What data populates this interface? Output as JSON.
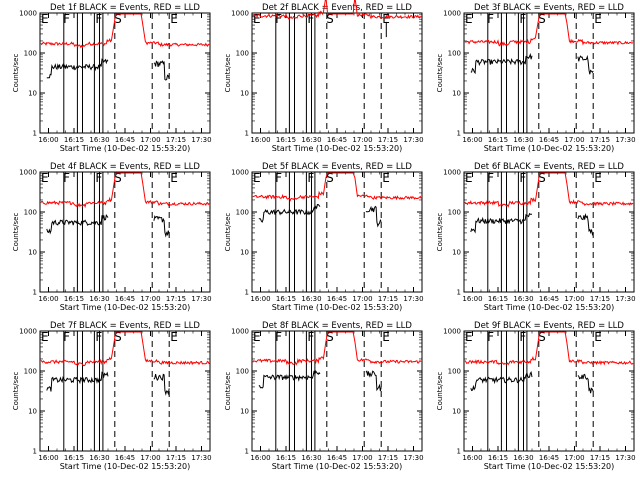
{
  "chart_data": [
    {
      "type": "line",
      "panel": 1,
      "title": "Det 1f BLACK = Events, RED = LLD",
      "xlabel": "Start Time (10-Dec-02 15:53:20)",
      "ylabel": "Counts/sec",
      "yscale": "log",
      "ylim": [
        1,
        1000
      ],
      "xlim": [
        "15:55",
        "17:35"
      ],
      "xticks": [
        "16:00",
        "16:15",
        "16:30",
        "16:45",
        "17:00",
        "17:15",
        "17:30"
      ],
      "yticks": [
        "1",
        "10",
        "100",
        "1000"
      ],
      "segment_labels": [
        {
          "label": "E",
          "time": "15:55"
        },
        {
          "label": "F",
          "time": "16:08"
        },
        {
          "label": "F",
          "time": "16:27"
        },
        {
          "label": "S",
          "time": "16:38"
        },
        {
          "label": "E",
          "time": "17:11"
        }
      ],
      "solid_markers": [
        "16:09",
        "16:17",
        "16:20",
        "16:27",
        "16:30",
        "16:32"
      ],
      "dashed_markers": [
        "16:39",
        "17:01",
        "17:11"
      ],
      "series": [
        {
          "name": "LLD",
          "color": "#ff0000",
          "level": 170
        },
        {
          "name": "Events",
          "color": "#000000",
          "level": 45
        }
      ],
      "gap": [
        "16:37",
        "16:57"
      ]
    },
    {
      "type": "line",
      "panel": 2,
      "title": "Det 2f BLACK = Events, RED = LLD",
      "xlabel": "Start Time (10-Dec-02 15:53:20)",
      "ylabel": "Counts/sec",
      "yscale": "log",
      "ylim": [
        1,
        1000
      ],
      "xlim": [
        "15:55",
        "17:35"
      ],
      "xticks": [
        "16:00",
        "16:15",
        "16:30",
        "16:45",
        "17:00",
        "17:15",
        "17:30"
      ],
      "yticks": [
        "1",
        "10",
        "100",
        "1000"
      ],
      "segment_labels": [
        {
          "label": "E",
          "time": "15:55"
        },
        {
          "label": "F",
          "time": "16:08"
        },
        {
          "label": "F",
          "time": "16:27"
        },
        {
          "label": "S",
          "time": "16:38"
        },
        {
          "label": "E",
          "time": "17:11"
        }
      ],
      "solid_markers": [
        "16:09",
        "16:17",
        "16:20",
        "16:27",
        "16:30",
        "16:32"
      ],
      "dashed_markers": [
        "16:39",
        "17:01",
        "17:11"
      ],
      "series": [
        {
          "name": "LLD",
          "color": "#ff0000",
          "level": 850
        },
        {
          "name": "Events",
          "color": "#000000",
          "level": null
        }
      ],
      "gap": [
        "16:37",
        "16:57"
      ]
    },
    {
      "type": "line",
      "panel": 3,
      "title": "Det 3f BLACK = Events, RED = LLD",
      "xlabel": "Start Time (10-Dec-02 15:53:20)",
      "ylabel": "Counts/sec",
      "yscale": "log",
      "ylim": [
        1,
        1000
      ],
      "xlim": [
        "15:55",
        "17:35"
      ],
      "xticks": [
        "16:00",
        "16:15",
        "16:30",
        "16:45",
        "17:00",
        "17:15",
        "17:30"
      ],
      "yticks": [
        "1",
        "10",
        "100",
        "1000"
      ],
      "segment_labels": [
        {
          "label": "E",
          "time": "15:55"
        },
        {
          "label": "F",
          "time": "16:08"
        },
        {
          "label": "F",
          "time": "16:27"
        },
        {
          "label": "S",
          "time": "16:38"
        },
        {
          "label": "E",
          "time": "17:11"
        }
      ],
      "solid_markers": [
        "16:09",
        "16:17",
        "16:20",
        "16:27",
        "16:30",
        "16:32"
      ],
      "dashed_markers": [
        "16:39",
        "17:01",
        "17:11"
      ],
      "series": [
        {
          "name": "LLD",
          "color": "#ff0000",
          "level": 190
        },
        {
          "name": "Events",
          "color": "#000000",
          "level": 60
        }
      ],
      "gap": [
        "16:37",
        "16:57"
      ]
    },
    {
      "type": "line",
      "panel": 4,
      "title": "Det 4f BLACK = Events, RED = LLD",
      "xlabel": "Start Time (10-Dec-02 15:53:20)",
      "ylabel": "Counts/sec",
      "yscale": "log",
      "ylim": [
        1,
        1000
      ],
      "xlim": [
        "15:55",
        "17:35"
      ],
      "xticks": [
        "16:00",
        "16:15",
        "16:30",
        "16:45",
        "17:00",
        "17:15",
        "17:30"
      ],
      "yticks": [
        "1",
        "10",
        "100",
        "1000"
      ],
      "segment_labels": [
        {
          "label": "E",
          "time": "15:55"
        },
        {
          "label": "F",
          "time": "16:08"
        },
        {
          "label": "F",
          "time": "16:27"
        },
        {
          "label": "S",
          "time": "16:38"
        },
        {
          "label": "E",
          "time": "17:11"
        }
      ],
      "solid_markers": [
        "16:09",
        "16:17",
        "16:20",
        "16:27",
        "16:30",
        "16:32"
      ],
      "dashed_markers": [
        "16:39",
        "17:01",
        "17:11"
      ],
      "series": [
        {
          "name": "LLD",
          "color": "#ff0000",
          "level": 170
        },
        {
          "name": "Events",
          "color": "#000000",
          "level": 55
        }
      ],
      "gap": [
        "16:37",
        "16:57"
      ]
    },
    {
      "type": "line",
      "panel": 5,
      "title": "Det 5f BLACK = Events, RED = LLD",
      "xlabel": "Start Time (10-Dec-02 15:53:20)",
      "ylabel": "Counts/sec",
      "yscale": "log",
      "ylim": [
        1,
        1000
      ],
      "xlim": [
        "15:55",
        "17:35"
      ],
      "xticks": [
        "16:00",
        "16:15",
        "16:30",
        "16:45",
        "17:00",
        "17:15",
        "17:30"
      ],
      "yticks": [
        "1",
        "10",
        "100",
        "1000"
      ],
      "segment_labels": [
        {
          "label": "E",
          "time": "15:55"
        },
        {
          "label": "F",
          "time": "16:08"
        },
        {
          "label": "F",
          "time": "16:27"
        },
        {
          "label": "S",
          "time": "16:38"
        },
        {
          "label": "E",
          "time": "17:11"
        }
      ],
      "solid_markers": [
        "16:09",
        "16:17",
        "16:20",
        "16:27",
        "16:30",
        "16:32"
      ],
      "dashed_markers": [
        "16:39",
        "17:01",
        "17:11"
      ],
      "series": [
        {
          "name": "LLD",
          "color": "#ff0000",
          "level": 240
        },
        {
          "name": "Events",
          "color": "#000000",
          "level": 100
        }
      ],
      "gap": [
        "16:37",
        "16:57"
      ]
    },
    {
      "type": "line",
      "panel": 6,
      "title": "Det 6f BLACK = Events, RED = LLD",
      "xlabel": "Start Time (10-Dec-02 15:53:20)",
      "ylabel": "Counts/sec",
      "yscale": "log",
      "ylim": [
        1,
        1000
      ],
      "xlim": [
        "15:55",
        "17:35"
      ],
      "xticks": [
        "16:00",
        "16:15",
        "16:30",
        "16:45",
        "17:00",
        "17:15",
        "17:30"
      ],
      "yticks": [
        "1",
        "10",
        "100",
        "1000"
      ],
      "segment_labels": [
        {
          "label": "E",
          "time": "15:55"
        },
        {
          "label": "F",
          "time": "16:08"
        },
        {
          "label": "F",
          "time": "16:27"
        },
        {
          "label": "S",
          "time": "16:38"
        },
        {
          "label": "E",
          "time": "17:11"
        }
      ],
      "solid_markers": [
        "16:09",
        "16:17",
        "16:20",
        "16:27",
        "16:30",
        "16:32"
      ],
      "dashed_markers": [
        "16:39",
        "17:01",
        "17:11"
      ],
      "series": [
        {
          "name": "LLD",
          "color": "#ff0000",
          "level": 170
        },
        {
          "name": "Events",
          "color": "#000000",
          "level": 60
        }
      ],
      "gap": [
        "16:37",
        "16:57"
      ]
    },
    {
      "type": "line",
      "panel": 7,
      "title": "Det 7f BLACK = Events, RED = LLD",
      "xlabel": "Start Time (10-Dec-02 15:53:20)",
      "ylabel": "Counts/sec",
      "yscale": "log",
      "ylim": [
        1,
        1000
      ],
      "xlim": [
        "15:55",
        "17:35"
      ],
      "xticks": [
        "16:00",
        "16:15",
        "16:30",
        "16:45",
        "17:00",
        "17:15",
        "17:30"
      ],
      "yticks": [
        "1",
        "10",
        "100",
        "1000"
      ],
      "segment_labels": [
        {
          "label": "E",
          "time": "15:55"
        },
        {
          "label": "F",
          "time": "16:08"
        },
        {
          "label": "F",
          "time": "16:27"
        },
        {
          "label": "S",
          "time": "16:38"
        },
        {
          "label": "E",
          "time": "17:11"
        }
      ],
      "solid_markers": [
        "16:09",
        "16:17",
        "16:20",
        "16:27",
        "16:30",
        "16:32"
      ],
      "dashed_markers": [
        "16:39",
        "17:01",
        "17:11"
      ],
      "series": [
        {
          "name": "LLD",
          "color": "#ff0000",
          "level": 170
        },
        {
          "name": "Events",
          "color": "#000000",
          "level": 60
        }
      ],
      "gap": [
        "16:37",
        "16:57"
      ]
    },
    {
      "type": "line",
      "panel": 8,
      "title": "Det 8f BLACK = Events, RED = LLD",
      "xlabel": "Start Time (10-Dec-02 15:53:20)",
      "ylabel": "Counts/sec",
      "yscale": "log",
      "ylim": [
        1,
        1000
      ],
      "xlim": [
        "15:55",
        "17:35"
      ],
      "xticks": [
        "16:00",
        "16:15",
        "16:30",
        "16:45",
        "17:00",
        "17:15",
        "17:30"
      ],
      "yticks": [
        "1",
        "10",
        "100",
        "1000"
      ],
      "segment_labels": [
        {
          "label": "E",
          "time": "15:55"
        },
        {
          "label": "F",
          "time": "16:08"
        },
        {
          "label": "F",
          "time": "16:27"
        },
        {
          "label": "S",
          "time": "16:38"
        },
        {
          "label": "E",
          "time": "17:11"
        }
      ],
      "solid_markers": [
        "16:09",
        "16:17",
        "16:20",
        "16:27",
        "16:30",
        "16:32"
      ],
      "dashed_markers": [
        "16:39",
        "17:01",
        "17:11"
      ],
      "series": [
        {
          "name": "LLD",
          "color": "#ff0000",
          "level": 180
        },
        {
          "name": "Events",
          "color": "#000000",
          "level": 70
        }
      ],
      "gap": [
        "16:37",
        "16:57"
      ]
    },
    {
      "type": "line",
      "panel": 9,
      "title": "Det 9f BLACK = Events, RED = LLD",
      "xlabel": "Start Time (10-Dec-02 15:53:20)",
      "ylabel": "Counts/sec",
      "yscale": "log",
      "ylim": [
        1,
        1000
      ],
      "xlim": [
        "15:55",
        "17:35"
      ],
      "xticks": [
        "16:00",
        "16:15",
        "16:30",
        "16:45",
        "17:00",
        "17:15",
        "17:30"
      ],
      "yticks": [
        "1",
        "10",
        "100",
        "1000"
      ],
      "segment_labels": [
        {
          "label": "E",
          "time": "15:55"
        },
        {
          "label": "F",
          "time": "16:08"
        },
        {
          "label": "F",
          "time": "16:27"
        },
        {
          "label": "S",
          "time": "16:38"
        },
        {
          "label": "E",
          "time": "17:11"
        }
      ],
      "solid_markers": [
        "16:09",
        "16:17",
        "16:20",
        "16:27",
        "16:30",
        "16:32"
      ],
      "dashed_markers": [
        "16:39",
        "17:01",
        "17:11"
      ],
      "series": [
        {
          "name": "LLD",
          "color": "#ff0000",
          "level": 170
        },
        {
          "name": "Events",
          "color": "#000000",
          "level": 60
        }
      ],
      "gap": [
        "16:37",
        "16:57"
      ]
    }
  ]
}
